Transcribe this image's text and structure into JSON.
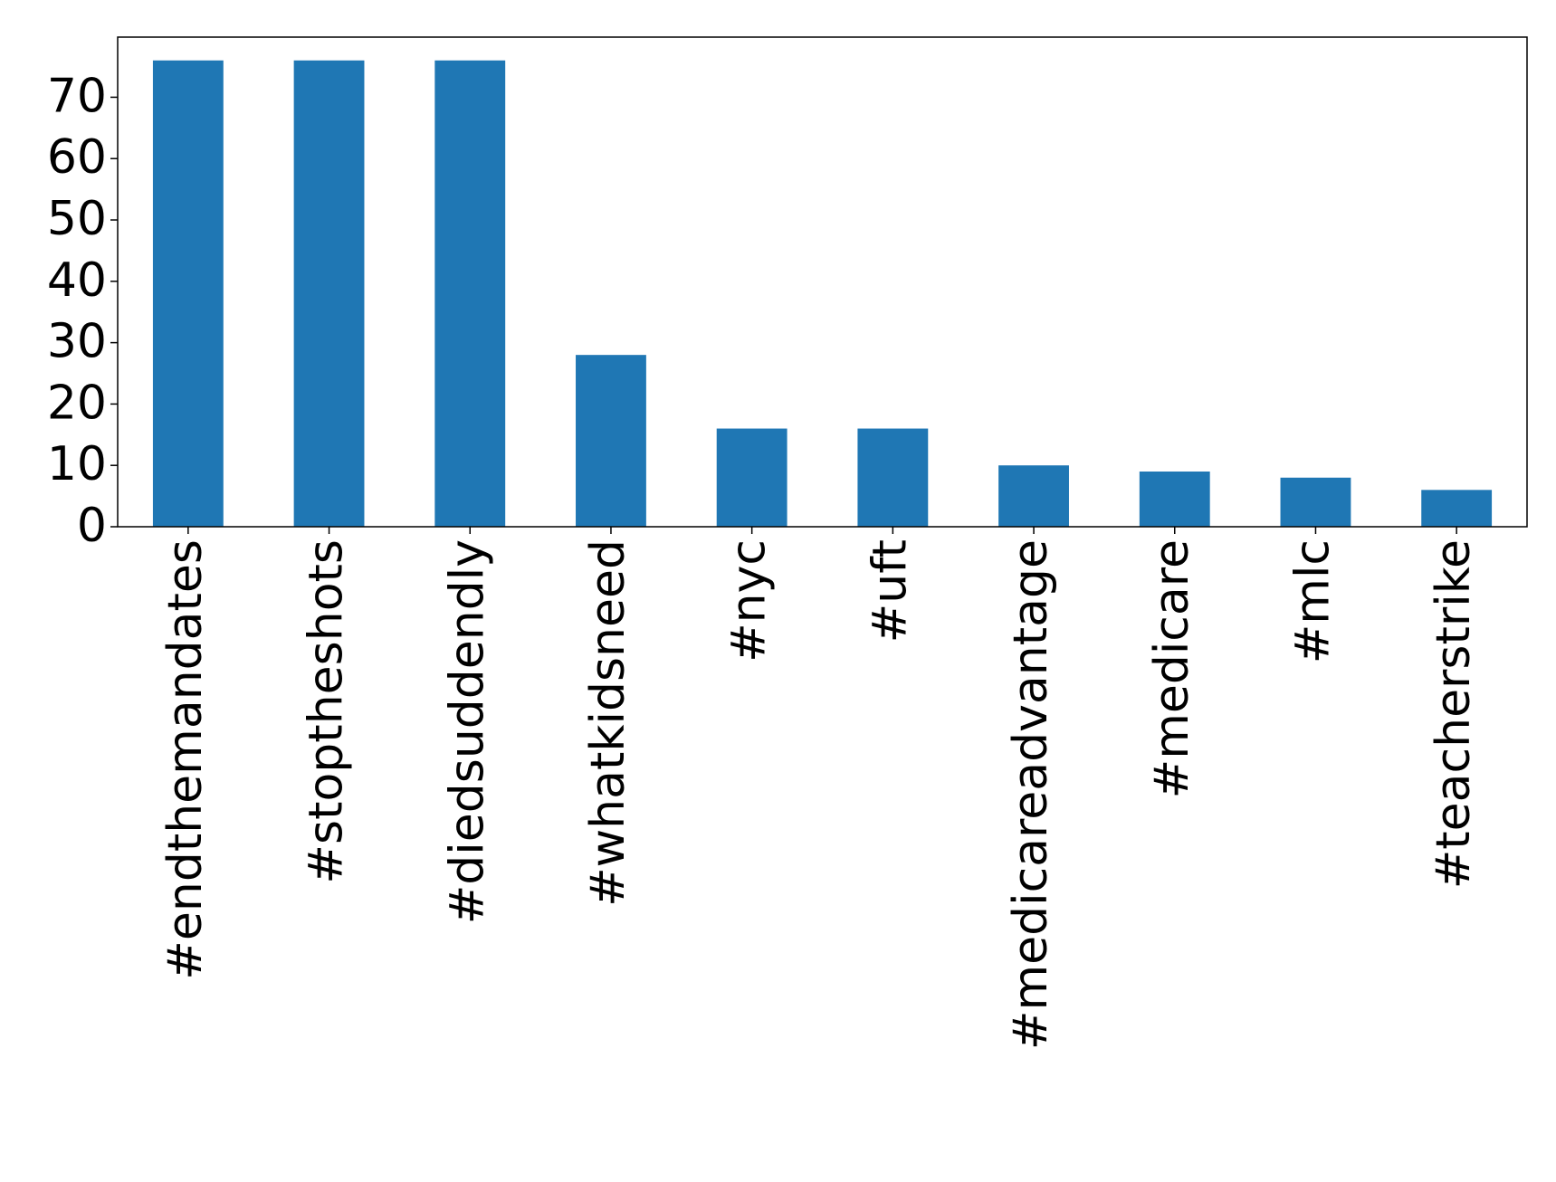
{
  "chart_data": {
    "type": "bar",
    "categories": [
      "#endthemandates",
      "#stoptheshots",
      "#diedsuddendly",
      "#whatkidsneed",
      "#nyc",
      "#uft",
      "#medicareadvantage",
      "#medicare",
      "#mlc",
      "#teacherstrike"
    ],
    "values": [
      76,
      76,
      76,
      28,
      16,
      16,
      10,
      9,
      8,
      6
    ],
    "color": "#1f77b4",
    "ylim": [
      0,
      79.8
    ],
    "yticks": [
      0,
      10,
      20,
      30,
      40,
      50,
      60,
      70
    ],
    "grid": false
  }
}
